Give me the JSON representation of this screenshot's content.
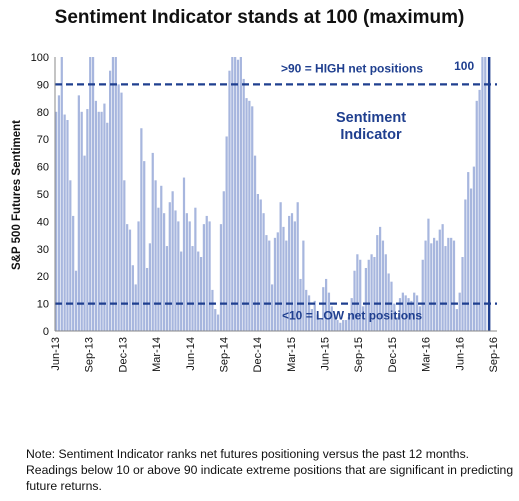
{
  "chart_data": {
    "type": "bar",
    "title": "Sentiment Indicator stands at 100 (maximum)",
    "xlabel": "",
    "ylabel": "S&P 500 Futures Sentiment",
    "ylim": [
      0,
      100
    ],
    "yticks": [
      0,
      10,
      20,
      30,
      40,
      50,
      60,
      70,
      80,
      90,
      100
    ],
    "grid": false,
    "x_ticks": [
      "Jun-13",
      "Sep-13",
      "Dec-13",
      "Mar-14",
      "Jun-14",
      "Sep-14",
      "Dec-14",
      "Mar-15",
      "Jun-15",
      "Sep-15",
      "Dec-15",
      "Mar-16",
      "Jun-16",
      "Sep-16"
    ],
    "bar_color": "#a7b6de",
    "series": [
      {
        "values": [
          80,
          86,
          100,
          79,
          77,
          55,
          42,
          22,
          86,
          80,
          64,
          81,
          100,
          100,
          84,
          80,
          80,
          83,
          76,
          95,
          100,
          100,
          90,
          87,
          55,
          39,
          37,
          24,
          17,
          40,
          74,
          62,
          23,
          32,
          65,
          55,
          45,
          53,
          43,
          31,
          47,
          51,
          44,
          40,
          29,
          56,
          43,
          40,
          31,
          45,
          29,
          27,
          39,
          42,
          40,
          15,
          8,
          6,
          39,
          51,
          71,
          95,
          100,
          100,
          99,
          100,
          92,
          85,
          84,
          82,
          64,
          50,
          48,
          43,
          35,
          33,
          17,
          34,
          36,
          47,
          38,
          33,
          42,
          43,
          40,
          47,
          19,
          33,
          15,
          13,
          8,
          11,
          6,
          4,
          16,
          19,
          14,
          9,
          6,
          4,
          3,
          4,
          4,
          5,
          12,
          22,
          28,
          26,
          9,
          23,
          26,
          28,
          27,
          35,
          38,
          33,
          28,
          21,
          18,
          10,
          5,
          12,
          14,
          13,
          12,
          11,
          14,
          13,
          9,
          26,
          33,
          41,
          32,
          34,
          33,
          37,
          39,
          31,
          34,
          34,
          33,
          8,
          14,
          27,
          48,
          58,
          52,
          60,
          84,
          88,
          100,
          100
        ]
      }
    ],
    "reference_lines": [
      {
        "value": 90,
        "label": ">90 = HIGH net positions",
        "style": "dashed",
        "color": "#1f3f8f"
      },
      {
        "value": 10,
        "label": "<10 = LOW net positions",
        "style": "dashed",
        "color": "#1f3f8f"
      }
    ],
    "annotations": {
      "series_label_line1": "Sentiment",
      "series_label_line2": "Indicator",
      "current_value": "100",
      "current_marker_color": "#1f3f8f"
    },
    "footnote": "Note: Sentiment Indicator ranks net futures positioning versus the past 12 months. Readings below 10 or above 90 indicate extreme positions that are significant in predicting future returns."
  }
}
